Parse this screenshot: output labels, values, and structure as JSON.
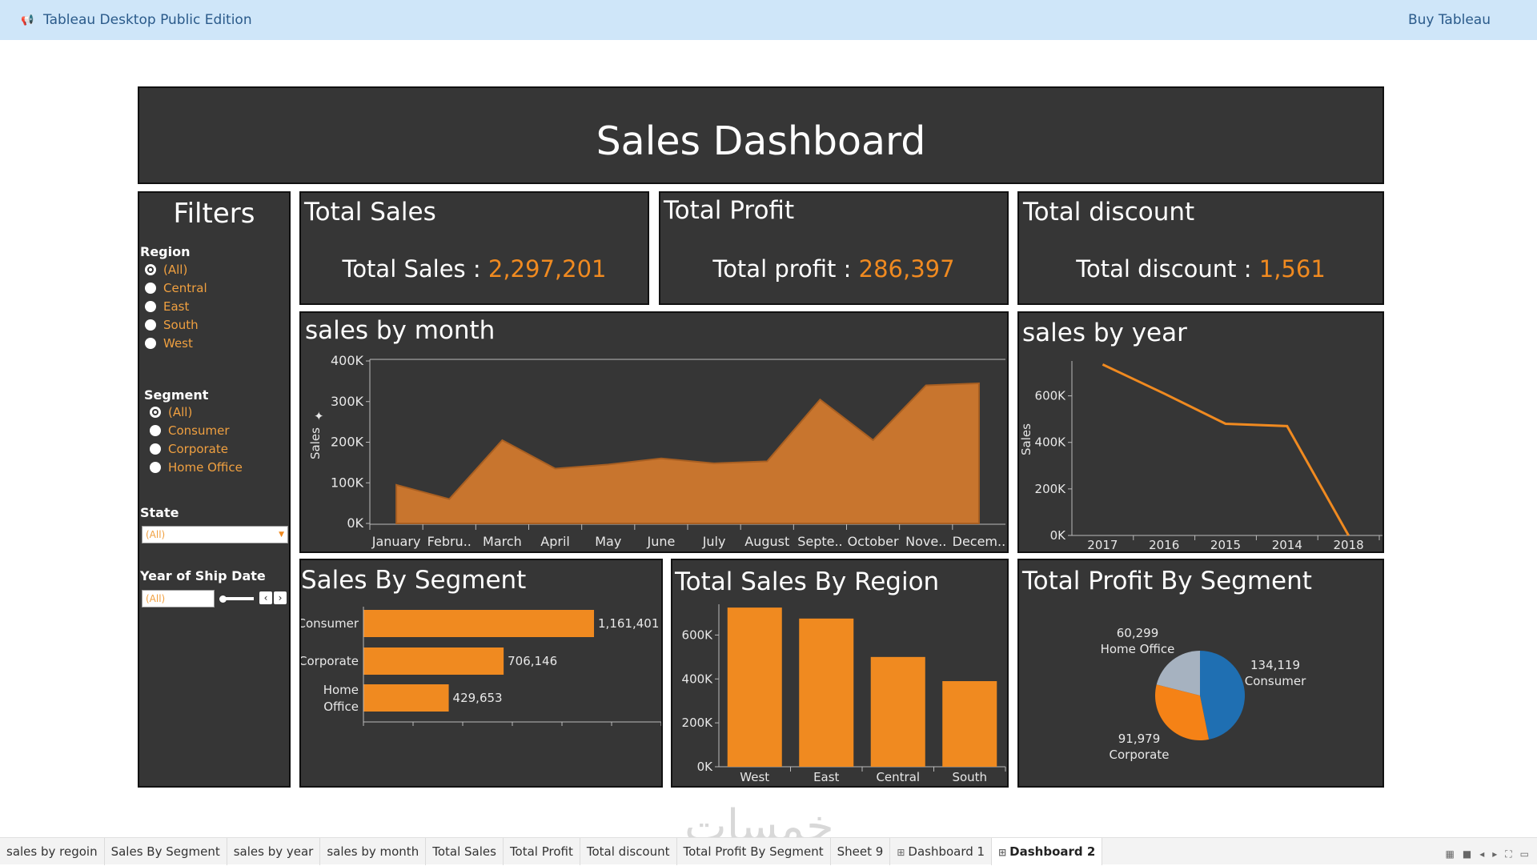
{
  "app": {
    "title": "Tableau Desktop Public Edition",
    "buy_label": "Buy Tableau",
    "logo_icon": "megaphone-icon"
  },
  "dashboard": {
    "title": "Sales Dashboard",
    "accent_color": "#f08a20",
    "panel_color": "#363636"
  },
  "filters": {
    "title": "Filters",
    "region": {
      "label": "Region",
      "options": [
        "(All)",
        "Central",
        "East",
        "South",
        "West"
      ],
      "selected": "(All)"
    },
    "segment": {
      "label": "Segment",
      "options": [
        "(All)",
        "Consumer",
        "Corporate",
        "Home Office"
      ],
      "selected": "(All)"
    },
    "state": {
      "label": "State",
      "value": "(All)"
    },
    "ship_year": {
      "label": "Year of Ship Date",
      "value": "(All)"
    }
  },
  "kpis": {
    "sales": {
      "title": "Total Sales",
      "label": "Total Sales : ",
      "value": "2,297,201"
    },
    "profit": {
      "title": "Total Profit",
      "label": "Total profit : ",
      "value": "286,397"
    },
    "discount": {
      "title": "Total discount",
      "label": "Total discount : ",
      "value": "1,561"
    }
  },
  "chart_data": [
    {
      "id": "sales_by_month",
      "type": "area",
      "title": "sales by month",
      "ylabel": "Sales",
      "categories": [
        "January",
        "Febru..",
        "March",
        "April",
        "May",
        "June",
        "July",
        "August",
        "Septe..",
        "October",
        "Nove..",
        "Decem.."
      ],
      "values": [
        95000,
        60000,
        205000,
        135000,
        145000,
        160000,
        148000,
        153000,
        305000,
        205000,
        340000,
        345000
      ],
      "ylim": [
        0,
        400000
      ],
      "yticks": [
        "0K",
        "100K",
        "200K",
        "300K",
        "400K"
      ],
      "color": "#c8752e"
    },
    {
      "id": "sales_by_year",
      "type": "line",
      "title": "sales by year",
      "ylabel": "Sales",
      "categories": [
        "2017",
        "2016",
        "2015",
        "2014",
        "2018"
      ],
      "values": [
        735000,
        610000,
        480000,
        470000,
        0
      ],
      "ylim": [
        0,
        750000
      ],
      "yticks": [
        "0K",
        "200K",
        "400K",
        "600K"
      ],
      "color": "#f08a20"
    },
    {
      "id": "sales_by_segment",
      "type": "bar",
      "orientation": "horizontal",
      "title": "Sales By Segment",
      "categories": [
        "Consumer",
        "Corporate",
        "Home Office"
      ],
      "values": [
        1161401,
        706146,
        429653
      ],
      "labels": [
        "1,161,401",
        "706,146",
        "429,653"
      ],
      "xlim": [
        0,
        1500000
      ],
      "color": "#f08a20"
    },
    {
      "id": "sales_by_region",
      "type": "bar",
      "title": "Total Sales By Region",
      "categories": [
        "West",
        "East",
        "Central",
        "South"
      ],
      "values": [
        725000,
        675000,
        500000,
        390000
      ],
      "ylim": [
        0,
        740000
      ],
      "yticks": [
        "0K",
        "200K",
        "400K",
        "600K"
      ],
      "color": "#f08a20"
    },
    {
      "id": "profit_by_segment",
      "type": "pie",
      "title": "Total Profit By Segment",
      "categories": [
        "Consumer",
        "Corporate",
        "Home Office"
      ],
      "values": [
        134119,
        91979,
        60299
      ],
      "labels": [
        "134,119",
        "91,979",
        "60,299"
      ],
      "colors": [
        "#1f6fb2",
        "#f58216",
        "#a6b2c0"
      ]
    }
  ],
  "tabs": [
    {
      "label": "sales by regoin",
      "icon": ""
    },
    {
      "label": "Sales By Segment",
      "icon": ""
    },
    {
      "label": "sales by year",
      "icon": ""
    },
    {
      "label": "sales by month",
      "icon": ""
    },
    {
      "label": "Total Sales",
      "icon": ""
    },
    {
      "label": "Total Profit",
      "icon": ""
    },
    {
      "label": "Total discount",
      "icon": ""
    },
    {
      "label": "Total Profit By Segment",
      "icon": ""
    },
    {
      "label": "Sheet 9",
      "icon": ""
    },
    {
      "label": "Dashboard 1",
      "icon": "⊞"
    },
    {
      "label": "Dashboard 2",
      "icon": "⊞",
      "active": true
    }
  ],
  "watermark": "خمسات"
}
